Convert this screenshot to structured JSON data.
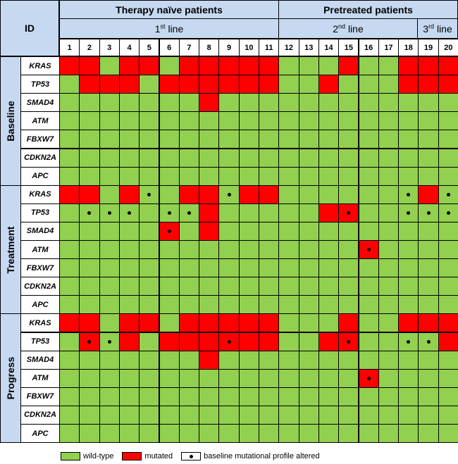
{
  "header": {
    "id_label": "ID",
    "group_naive": "Therapy naïve patients",
    "group_pretreated": "Pretreated patients",
    "line1": {
      "num": "1",
      "sup": "st",
      "word": " line"
    },
    "line2": {
      "num": "2",
      "sup": "nd",
      "word": " line"
    },
    "line3": {
      "num": "3",
      "sup": "rd",
      "word": " line"
    },
    "patients": [
      "1",
      "2",
      "3",
      "4",
      "5",
      "6",
      "7",
      "8",
      "9",
      "10",
      "11",
      "12",
      "13",
      "14",
      "15",
      "16",
      "17",
      "18",
      "19",
      "20"
    ]
  },
  "genes": [
    "KRAS",
    "TP53",
    "SMAD4",
    "ATM",
    "FBXW7",
    "CDKN2A",
    "APC"
  ],
  "sections": [
    {
      "label": "Baseline",
      "rows": [
        [
          2,
          2,
          1,
          2,
          2,
          1,
          2,
          2,
          2,
          2,
          2,
          1,
          1,
          1,
          2,
          1,
          1,
          2,
          2,
          2
        ],
        [
          1,
          2,
          2,
          2,
          1,
          2,
          2,
          2,
          2,
          2,
          2,
          1,
          1,
          2,
          1,
          1,
          1,
          2,
          2,
          2
        ],
        [
          1,
          1,
          1,
          1,
          1,
          1,
          1,
          2,
          1,
          1,
          1,
          1,
          1,
          1,
          1,
          1,
          1,
          1,
          1,
          1
        ],
        [
          1,
          1,
          1,
          1,
          1,
          1,
          1,
          1,
          1,
          1,
          1,
          1,
          1,
          1,
          1,
          1,
          1,
          1,
          1,
          1
        ],
        [
          1,
          1,
          1,
          1,
          1,
          1,
          1,
          1,
          1,
          1,
          1,
          1,
          1,
          1,
          1,
          1,
          1,
          1,
          1,
          1
        ],
        [
          1,
          1,
          1,
          1,
          1,
          1,
          1,
          1,
          1,
          1,
          1,
          1,
          1,
          1,
          1,
          1,
          1,
          1,
          1,
          1
        ],
        [
          1,
          1,
          1,
          1,
          1,
          1,
          1,
          1,
          1,
          1,
          1,
          1,
          1,
          1,
          1,
          1,
          1,
          1,
          1,
          1
        ]
      ]
    },
    {
      "label": "Treatment",
      "rows": [
        [
          2,
          2,
          1,
          2,
          3,
          1,
          2,
          2,
          3,
          2,
          2,
          1,
          1,
          1,
          1,
          1,
          1,
          3,
          2,
          3
        ],
        [
          1,
          3,
          3,
          3,
          1,
          3,
          3,
          2,
          1,
          1,
          1,
          1,
          1,
          2,
          4,
          1,
          1,
          3,
          3,
          3
        ],
        [
          1,
          1,
          1,
          1,
          1,
          4,
          1,
          2,
          1,
          1,
          1,
          1,
          1,
          1,
          1,
          1,
          1,
          1,
          1,
          1
        ],
        [
          1,
          1,
          1,
          1,
          1,
          1,
          1,
          1,
          1,
          1,
          1,
          1,
          1,
          1,
          1,
          4,
          1,
          1,
          1,
          1
        ],
        [
          1,
          1,
          1,
          1,
          1,
          1,
          1,
          1,
          1,
          1,
          1,
          1,
          1,
          1,
          1,
          1,
          1,
          1,
          1,
          1
        ],
        [
          1,
          1,
          1,
          1,
          1,
          1,
          1,
          1,
          1,
          1,
          1,
          1,
          1,
          1,
          1,
          1,
          1,
          1,
          1,
          1
        ],
        [
          1,
          1,
          1,
          1,
          1,
          1,
          1,
          1,
          1,
          1,
          1,
          1,
          1,
          1,
          1,
          1,
          1,
          1,
          1,
          1
        ]
      ]
    },
    {
      "label": "Progress",
      "rows": [
        [
          2,
          2,
          1,
          2,
          2,
          1,
          2,
          2,
          2,
          2,
          2,
          1,
          1,
          1,
          2,
          1,
          1,
          2,
          2,
          2
        ],
        [
          1,
          4,
          3,
          2,
          1,
          2,
          2,
          2,
          4,
          2,
          2,
          1,
          1,
          2,
          4,
          1,
          1,
          3,
          3,
          2
        ],
        [
          1,
          1,
          1,
          1,
          1,
          1,
          1,
          2,
          1,
          1,
          1,
          1,
          1,
          1,
          1,
          1,
          1,
          1,
          1,
          1
        ],
        [
          1,
          1,
          1,
          1,
          1,
          1,
          1,
          1,
          1,
          1,
          1,
          1,
          1,
          1,
          1,
          4,
          1,
          1,
          1,
          1
        ],
        [
          1,
          1,
          1,
          1,
          1,
          1,
          1,
          1,
          1,
          1,
          1,
          1,
          1,
          1,
          1,
          1,
          1,
          1,
          1,
          1
        ],
        [
          1,
          1,
          1,
          1,
          1,
          1,
          1,
          1,
          1,
          1,
          1,
          1,
          1,
          1,
          1,
          1,
          1,
          1,
          1,
          1
        ],
        [
          1,
          1,
          1,
          1,
          1,
          1,
          1,
          1,
          1,
          1,
          1,
          1,
          1,
          1,
          1,
          1,
          1,
          1,
          1,
          1
        ]
      ]
    }
  ],
  "colors": {
    "wild_type": "#92d050",
    "mutated": "#ff0000",
    "header": "#c6d9f1"
  },
  "legend": {
    "wild_type": "wild-type",
    "mutated": "mutated",
    "altered": "baseline mutational profile altered"
  }
}
